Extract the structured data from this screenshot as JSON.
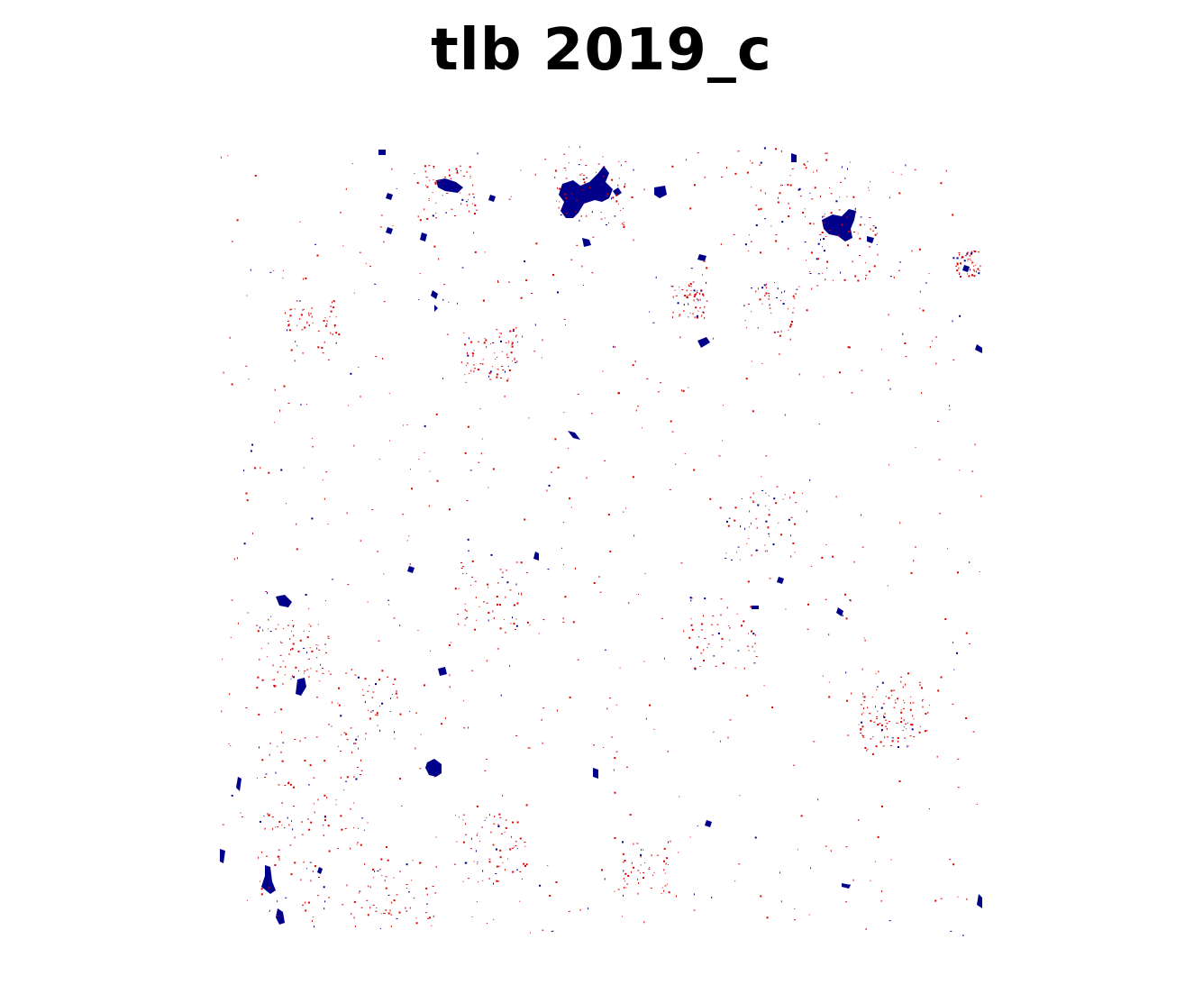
{
  "title": "tlb 2019_c",
  "colors": {
    "background": "#ffffff",
    "blue_class": "#00008b",
    "red_class": "#dd0000"
  }
}
